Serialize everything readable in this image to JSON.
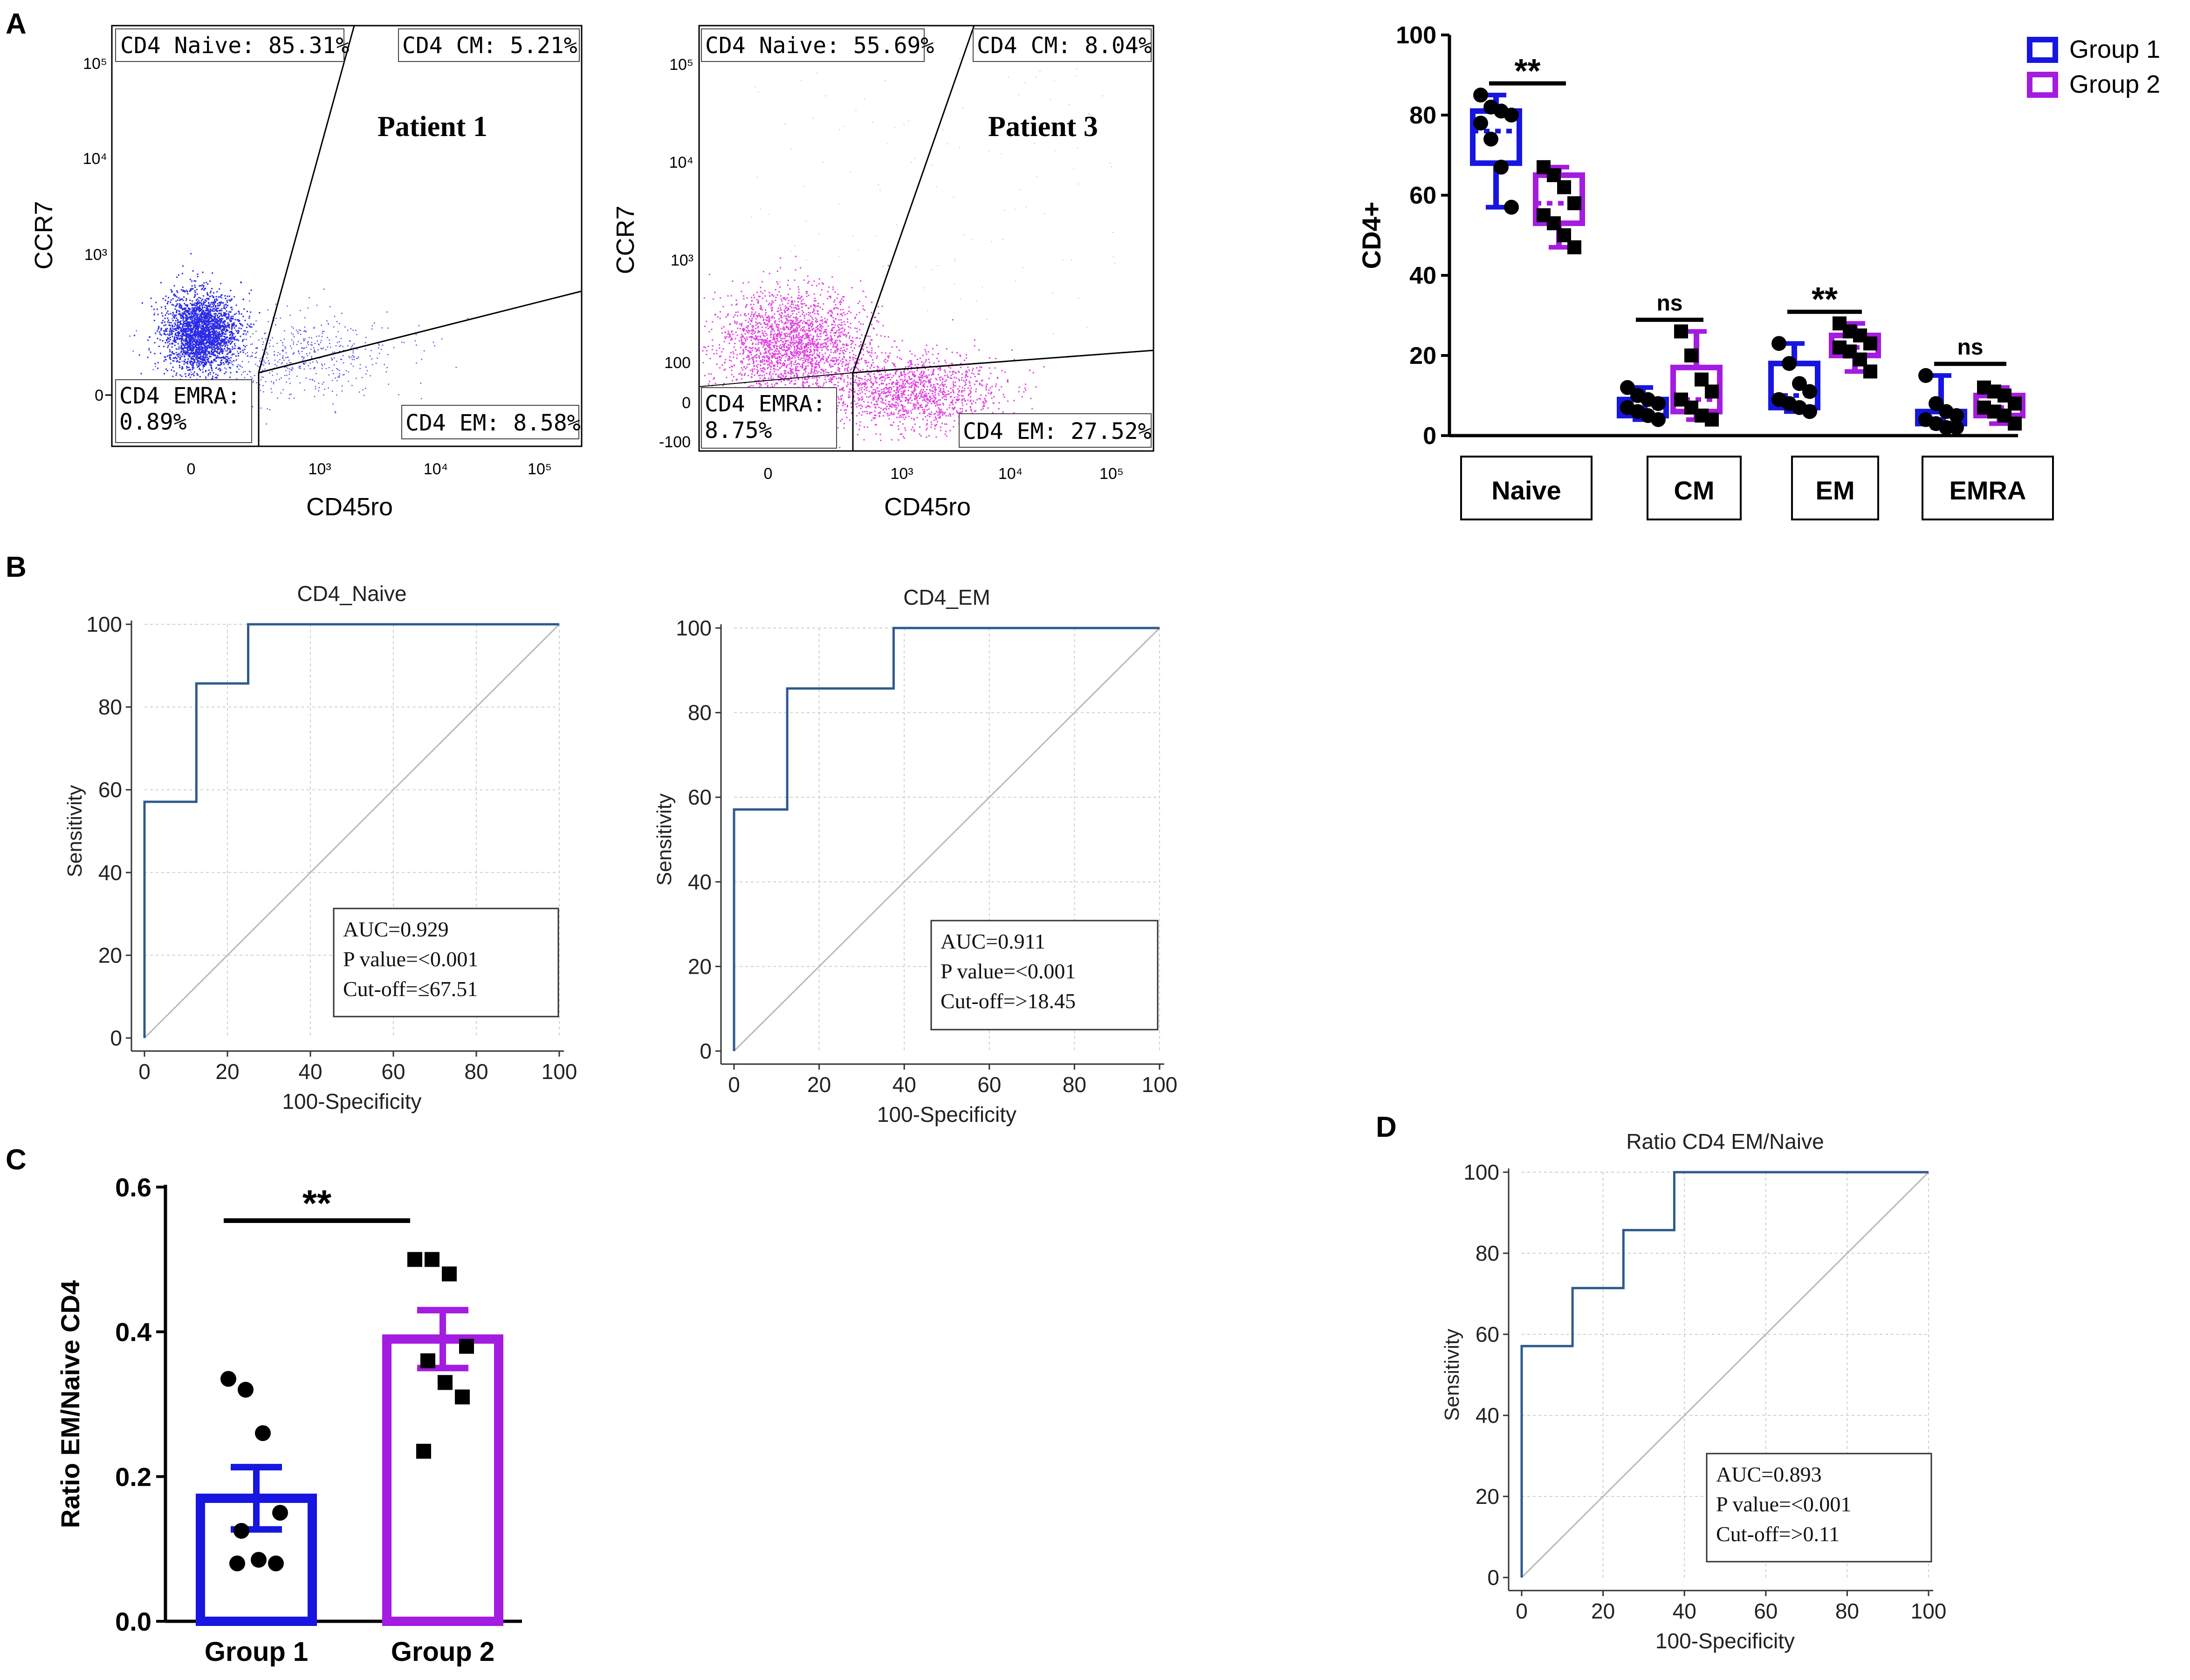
{
  "panel_labels": {
    "A": "A",
    "B": "B",
    "C": "C",
    "D": "D"
  },
  "colors": {
    "group1": "#1616e0",
    "group2": "#a41ce0",
    "blue_dots": "#2a2ae8",
    "magenta_dots": "#e040e0",
    "roc_line": "#2e5a8c",
    "diag": "#b8b8b8",
    "grid": "#cfcfcf"
  },
  "flow": [
    {
      "patient": "Patient 1",
      "xlabel": "CD45ro",
      "ylabel": "CCR7",
      "dot_color_name": "blue",
      "gates": {
        "naive": "CD4 Naive: 85.31%",
        "cm": "CD4 CM: 5.21%",
        "emra_1": "CD4 EMRA:",
        "emra_2": "0.89%",
        "em": "CD4 EM: 8.58%"
      },
      "xticks": [
        "0",
        "10³",
        "10⁴",
        "10⁵"
      ],
      "yticks": [
        "10⁵",
        "10⁴",
        "10³",
        "0"
      ]
    },
    {
      "patient": "Patient 3",
      "xlabel": "CD45ro",
      "ylabel": "CCR7",
      "dot_color_name": "magenta",
      "gates": {
        "naive": "CD4 Naive: 55.69%",
        "cm": "CD4 CM: 8.04%",
        "emra_1": "CD4 EMRA:",
        "emra_2": "8.75%",
        "em": "CD4 EM: 27.52%"
      },
      "xticks": [
        "0",
        "10³",
        "10⁴",
        "10⁵"
      ],
      "yticks": [
        "10⁵",
        "10⁴",
        "10³",
        "100",
        "0",
        "-100"
      ]
    }
  ],
  "chart_data": [
    {
      "id": "A-box",
      "type": "box",
      "ylabel": "CD4+",
      "ylim": [
        0,
        100
      ],
      "yticks": [
        0,
        20,
        40,
        60,
        80,
        100
      ],
      "categories": [
        "Naive",
        "CM",
        "EM",
        "EMRA"
      ],
      "legend": [
        "Group 1",
        "Group 2"
      ],
      "legend_position": "top-right",
      "significance": [
        "**",
        "ns",
        "**",
        "ns"
      ],
      "series": [
        {
          "name": "Group 1",
          "boxes": [
            {
              "min": 57,
              "q1": 68,
              "median": 76,
              "q3": 81,
              "max": 85,
              "points": [
                85,
                82,
                81,
                80,
                78,
                74,
                67,
                57
              ]
            },
            {
              "min": 4,
              "q1": 5,
              "median": 7,
              "q3": 9,
              "max": 12,
              "points": [
                12,
                10,
                9,
                8,
                7,
                6,
                5,
                4
              ]
            },
            {
              "min": 6,
              "q1": 7,
              "median": 10,
              "q3": 18,
              "max": 23,
              "points": [
                23,
                18,
                13,
                11,
                9,
                8,
                7,
                6
              ]
            },
            {
              "min": 2,
              "q1": 3,
              "median": 4,
              "q3": 6,
              "max": 15,
              "points": [
                15,
                8,
                6,
                5,
                4,
                3,
                2,
                2
              ]
            }
          ]
        },
        {
          "name": "Group 2",
          "boxes": [
            {
              "min": 47,
              "q1": 53,
              "median": 58,
              "q3": 65,
              "max": 67,
              "points": [
                67,
                65,
                62,
                58,
                55,
                53,
                50,
                47
              ]
            },
            {
              "min": 4,
              "q1": 6,
              "median": 9,
              "q3": 17,
              "max": 26,
              "points": [
                26,
                20,
                14,
                11,
                9,
                7,
                5,
                4
              ]
            },
            {
              "min": 16,
              "q1": 20,
              "median": 22,
              "q3": 25,
              "max": 28,
              "points": [
                28,
                26,
                25,
                23,
                22,
                21,
                19,
                16
              ]
            },
            {
              "min": 3,
              "q1": 5,
              "median": 7,
              "q3": 10,
              "max": 12,
              "points": [
                12,
                11,
                10,
                8,
                7,
                6,
                5,
                3
              ]
            }
          ]
        }
      ]
    },
    {
      "id": "B-roc-naive",
      "type": "line",
      "title": "CD4_Naive",
      "xlabel": "100-Specificity",
      "ylabel": "Sensitivity",
      "xlim": [
        0,
        100
      ],
      "ylim": [
        0,
        100
      ],
      "ticks": [
        0,
        20,
        40,
        60,
        80,
        100
      ],
      "roc": {
        "x": [
          0,
          0,
          12.5,
          12.5,
          25,
          25,
          100
        ],
        "y": [
          0,
          57.1,
          57.1,
          85.7,
          85.7,
          100,
          100
        ]
      },
      "stats": [
        "AUC=0.929",
        "P value=<0.001",
        "Cut-off=≤67.51"
      ]
    },
    {
      "id": "B-roc-em",
      "type": "line",
      "title": "CD4_EM",
      "xlabel": "100-Specificity",
      "ylabel": "Sensitivity",
      "xlim": [
        0,
        100
      ],
      "ylim": [
        0,
        100
      ],
      "ticks": [
        0,
        20,
        40,
        60,
        80,
        100
      ],
      "roc": {
        "x": [
          0,
          0,
          12.5,
          12.5,
          37.5,
          37.5,
          100
        ],
        "y": [
          0,
          57.1,
          57.1,
          85.7,
          85.7,
          100,
          100
        ]
      },
      "stats": [
        "AUC=0.911",
        "P value=<0.001",
        "Cut-off=>18.45"
      ]
    },
    {
      "id": "C-bar",
      "type": "bar",
      "ylabel": "Ratio EM/Naive CD4",
      "categories": [
        "Group 1",
        "Group 2"
      ],
      "values": [
        0.17,
        0.39
      ],
      "sem": [
        0.043,
        0.04
      ],
      "points": [
        [
          0.335,
          0.32,
          0.26,
          0.15,
          0.125,
          0.085,
          0.08,
          0.08
        ],
        [
          0.5,
          0.5,
          0.48,
          0.38,
          0.36,
          0.33,
          0.31,
          0.235
        ]
      ],
      "ylim": [
        0,
        0.6
      ],
      "yticks": [
        "0.0",
        "0.2",
        "0.4",
        "0.6"
      ],
      "significance": "**"
    },
    {
      "id": "D-roc-ratio",
      "type": "line",
      "title": "Ratio CD4 EM/Naive",
      "xlabel": "100-Specificity",
      "ylabel": "Sensitivity",
      "xlim": [
        0,
        100
      ],
      "ylim": [
        0,
        100
      ],
      "ticks": [
        0,
        20,
        40,
        60,
        80,
        100
      ],
      "roc": {
        "x": [
          0,
          0,
          12.5,
          12.5,
          25,
          25,
          37.5,
          37.5,
          100
        ],
        "y": [
          0,
          57.1,
          57.1,
          71.4,
          71.4,
          85.7,
          85.7,
          100,
          100
        ]
      },
      "stats": [
        "AUC=0.893",
        "P value=<0.001",
        "Cut-off=>0.11"
      ]
    }
  ]
}
